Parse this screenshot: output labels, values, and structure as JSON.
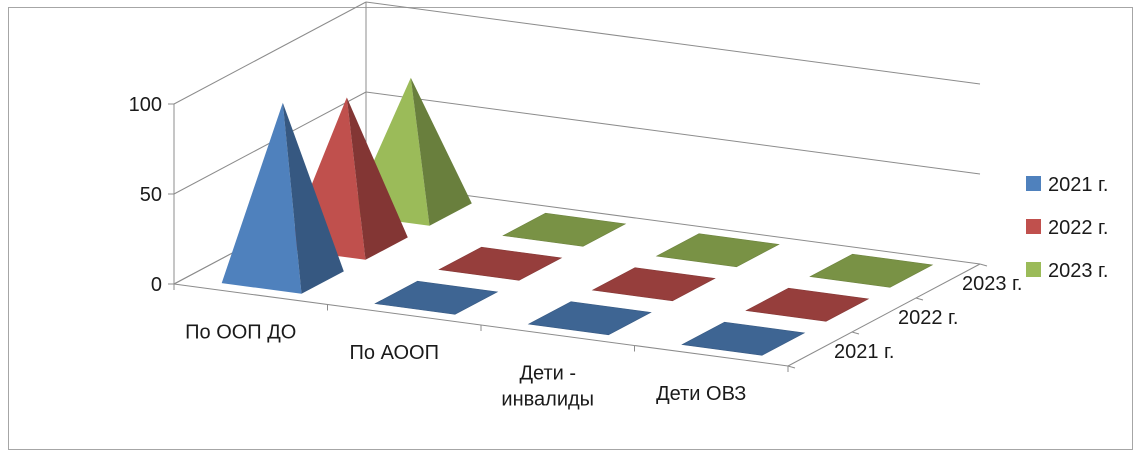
{
  "chart_data": {
    "type": "bar",
    "subtype": "3d-pyramid",
    "title": "",
    "categories": [
      "По ООП ДО",
      "По АООП",
      "Дети - инвалиды",
      "Дети ОВЗ"
    ],
    "category_lines": [
      [
        "По ООП ДО"
      ],
      [
        "По АООП"
      ],
      [
        "Дети -",
        "инвалиды"
      ],
      [
        "Дети ОВЗ"
      ]
    ],
    "depth_labels": [
      "2021 г.",
      "2022 г.",
      "2023 г."
    ],
    "y_ticks": [
      "0",
      "50",
      "100"
    ],
    "ylim": [
      0,
      100
    ],
    "series": [
      {
        "name": "2021 г.",
        "color": "#4f81bd",
        "values": [
          97,
          0,
          0,
          0
        ]
      },
      {
        "name": "2022 г.",
        "color": "#c0504d",
        "values": [
          81,
          0,
          0,
          0
        ]
      },
      {
        "name": "2023 г.",
        "color": "#9bbb59",
        "values": [
          73,
          0,
          0,
          0
        ]
      }
    ],
    "legend_position": "right",
    "grid": true
  }
}
